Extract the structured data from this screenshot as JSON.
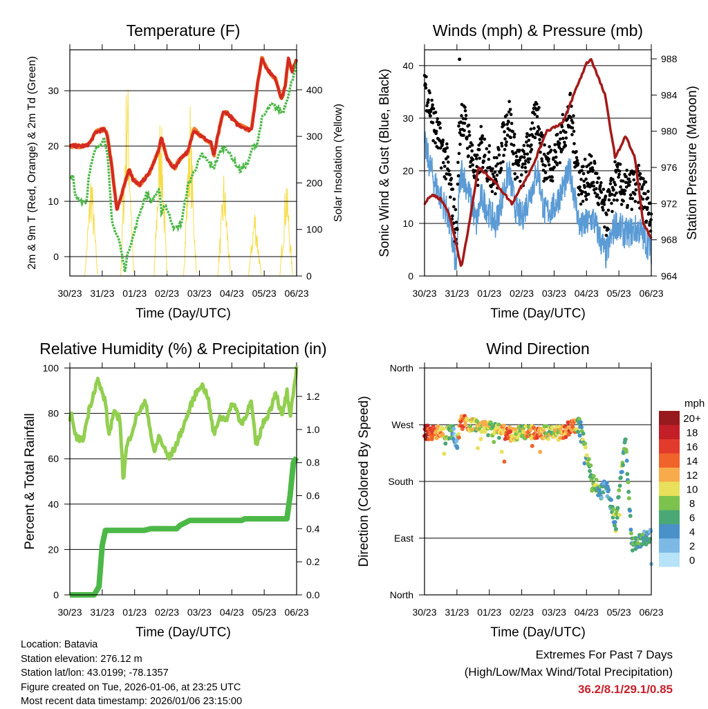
{
  "chart_data": [
    {
      "type": "line",
      "title": "Temperature (F)",
      "xlabel": "Time (Day/UTC)",
      "ylabel": "2m & 9m T (Red, Orange) & 2m Td (Green)",
      "y2label": "Solar Insolation (Yellow)",
      "xticks": [
        "30/23",
        "31/23",
        "01/23",
        "02/23",
        "03/23",
        "04/23",
        "05/23",
        "06/23"
      ],
      "xlim": [
        0,
        7
      ],
      "ylim": [
        -3.5,
        37.4
      ],
      "yticks": [
        0,
        10,
        20,
        30
      ],
      "y2lim": [
        0,
        486
      ],
      "y2ticks": [
        0,
        100,
        200,
        300,
        400
      ],
      "series": [
        {
          "name": "2m/9m T",
          "color": "#d42a22",
          "x": [
            0,
            0.52,
            0.66,
            0.8,
            1.05,
            1.16,
            1.3,
            1.45,
            1.59,
            1.84,
            1.94,
            2.16,
            2.44,
            2.73,
            2.83,
            3.01,
            3.23,
            3.44,
            3.65,
            3.83,
            4.01,
            4.37,
            4.44,
            4.54,
            4.72,
            4.86,
            5.15,
            5.51,
            5.61,
            5.79,
            5.93,
            6.08,
            6.36,
            6.54,
            6.65,
            6.75,
            6.86,
            7.0
          ],
          "y": [
            20,
            20,
            21,
            22.5,
            23,
            22,
            16,
            8.5,
            11,
            16,
            14,
            13,
            15,
            19,
            21.5,
            17.5,
            16,
            18,
            19,
            23,
            22,
            20.5,
            18,
            21,
            26,
            26,
            24,
            23,
            23,
            31,
            36,
            34,
            32,
            28.5,
            31,
            36,
            33.5,
            35.5
          ]
        },
        {
          "name": "2m Td",
          "color": "#4cb848",
          "x": [
            0,
            0.09,
            0.16,
            0.38,
            0.52,
            0.59,
            0.77,
            1.05,
            1.16,
            1.3,
            1.52,
            1.7,
            1.8,
            1.98,
            2.16,
            2.37,
            2.51,
            2.76,
            2.83,
            2.94,
            3.23,
            3.44,
            3.65,
            4.08,
            4.44,
            4.65,
            4.79,
            4.94,
            5.26,
            5.51,
            5.65,
            5.79,
            5.93,
            6.22,
            6.36,
            6.57,
            6.78,
            7.0
          ],
          "y": [
            14,
            15,
            11,
            10,
            10,
            15,
            19,
            21.5,
            19,
            6,
            3,
            -2.5,
            1,
            4,
            8,
            11.5,
            10,
            12,
            8,
            9.5,
            5,
            6,
            13,
            18.5,
            16,
            19,
            20,
            18.5,
            15.5,
            17,
            20,
            20.5,
            25,
            27.5,
            27,
            26,
            30,
            35
          ]
        },
        {
          "name": "Solar Insolation",
          "color": "#f7dc4a",
          "axis": "right",
          "peak_day": [
            0.66,
            1.77,
            2.8,
            3.71,
            4.76,
            5.71,
            6.68
          ],
          "peak_value": [
            250,
            486,
            400,
            390,
            240,
            160,
            235
          ]
        }
      ]
    },
    {
      "type": "scatter",
      "title": "Winds (mph) & Pressure (mb)",
      "xlabel": "Time (Day/UTC)",
      "ylabel": "Sonic Wind & Gust (Blue, Black)",
      "y2label": "Station Pressure (Maroon)",
      "xticks": [
        "30/23",
        "31/23",
        "01/23",
        "02/23",
        "03/23",
        "04/23",
        "05/23",
        "06/23"
      ],
      "xlim": [
        0,
        7
      ],
      "ylim": [
        0,
        43
      ],
      "yticks": [
        0,
        10,
        20,
        30,
        40
      ],
      "y2lim": [
        964,
        989
      ],
      "y2ticks": [
        964,
        968,
        972,
        976,
        980,
        984,
        988
      ],
      "series": [
        {
          "name": "Wind",
          "color": "#5b9bd5",
          "x": [
            0,
            0.3,
            0.7,
            0.95,
            1.0,
            1.05,
            1.15,
            1.4,
            1.6,
            1.75,
            2.0,
            2.2,
            2.6,
            2.8,
            3.0,
            3.5,
            3.7,
            4.0,
            4.5,
            4.8,
            5.2,
            5.6,
            5.9,
            6.2,
            6.6,
            7.0
          ],
          "y": [
            25,
            18,
            12,
            3,
            1,
            15,
            20,
            15,
            10,
            15,
            12,
            10,
            20,
            13,
            11,
            20,
            12,
            13,
            20,
            9,
            11,
            4,
            10,
            8,
            9,
            5
          ]
        },
        {
          "name": "Gust",
          "color": "#000000",
          "max": 41.2
        },
        {
          "name": "Pressure",
          "color": "#a31a1a",
          "axis": "right",
          "x": [
            0,
            0.23,
            0.5,
            0.75,
            0.95,
            1.13,
            1.3,
            1.66,
            2.0,
            2.26,
            2.7,
            3.0,
            3.33,
            3.76,
            4.29,
            4.6,
            5.0,
            5.14,
            5.57,
            5.89,
            6.2,
            6.5,
            6.74,
            7.0
          ],
          "y": [
            972,
            973,
            972.5,
            971,
            968,
            965,
            968,
            976,
            975,
            974,
            972,
            974,
            976,
            980,
            981,
            984,
            987.5,
            988,
            984,
            977,
            979.5,
            977,
            970,
            968
          ]
        }
      ]
    },
    {
      "type": "line",
      "title": "Relative Humidity (%) & Precipitation (in)",
      "xlabel": "Time (Day/UTC)",
      "ylabel": "Percent & Total Rainfall",
      "xticks": [
        "30/23",
        "31/23",
        "01/23",
        "02/23",
        "03/23",
        "04/23",
        "05/23",
        "06/23"
      ],
      "xlim": [
        0,
        7
      ],
      "ylim": [
        0,
        100
      ],
      "yticks": [
        0,
        20,
        40,
        60,
        80,
        100
      ],
      "y2lim": [
        0,
        1.372
      ],
      "y2ticks": [
        "0.0",
        "0.2",
        "0.4",
        "0.6",
        "0.8",
        "1.0",
        "1.2"
      ],
      "series": [
        {
          "name": "Relative Humidity",
          "color": "#92cf50",
          "x": [
            0,
            0.05,
            0.15,
            0.4,
            0.6,
            0.85,
            1.1,
            1.2,
            1.35,
            1.55,
            1.65,
            1.75,
            2.1,
            2.35,
            2.6,
            2.75,
            3.05,
            3.25,
            3.55,
            3.8,
            4.05,
            4.25,
            4.45,
            4.6,
            4.85,
            5.05,
            5.3,
            5.6,
            5.75,
            5.95,
            6.2,
            6.35,
            6.55,
            6.7,
            6.8,
            6.95,
            7.0
          ],
          "y": [
            75,
            82,
            70,
            68,
            82,
            95,
            85,
            70,
            80,
            78,
            50,
            65,
            80,
            85,
            62,
            70,
            60,
            65,
            76,
            86,
            93,
            88,
            70,
            78,
            78,
            85,
            75,
            85,
            65,
            75,
            82,
            90,
            78,
            90,
            77,
            95,
            100
          ]
        },
        {
          "name": "Total Precipitation",
          "color": "#4cb848",
          "axis": "right",
          "x": [
            0,
            0.75,
            0.9,
            1.0,
            1.1,
            2.3,
            2.5,
            3.3,
            3.4,
            3.7,
            5.3,
            5.4,
            6.7,
            6.8,
            6.9,
            7.0
          ],
          "y": [
            0,
            0,
            0.05,
            0.3,
            0.39,
            0.39,
            0.4,
            0.4,
            0.42,
            0.45,
            0.45,
            0.46,
            0.46,
            0.6,
            0.8,
            0.83
          ]
        }
      ]
    },
    {
      "type": "scatter",
      "title": "Wind Direction",
      "xlabel": "Time (Day/UTC)",
      "ylabel": "Direction (Colored By Speed)",
      "xticks": [
        "30/23",
        "31/23",
        "01/23",
        "02/23",
        "03/23",
        "04/23",
        "05/23",
        "06/23"
      ],
      "xlim": [
        0,
        7
      ],
      "ylim": [
        0,
        360
      ],
      "yticks": [
        "North",
        "East",
        "South",
        "West",
        "North"
      ],
      "direction_x": [
        0,
        0.9,
        1.0,
        1.1,
        2.3,
        2.6,
        3.2,
        4.2,
        4.8,
        5.1,
        5.4,
        5.6,
        5.9,
        6.2,
        6.4,
        6.6,
        7.0
      ],
      "direction_y": [
        258,
        258,
        240,
        275,
        260,
        255,
        258,
        258,
        270,
        200,
        160,
        175,
        110,
        250,
        80,
        85,
        95
      ],
      "legend": {
        "title": "mph",
        "labels": [
          "20+",
          "18",
          "16",
          "14",
          "12",
          "10",
          "8",
          "6",
          "4",
          "2",
          "0"
        ],
        "colors": [
          "#981a1e",
          "#c31f28",
          "#e23b2c",
          "#f0632b",
          "#f8ab4b",
          "#e8e05a",
          "#7cc24d",
          "#4aa874",
          "#4a90c9",
          "#7db9e5",
          "#b6e3f8"
        ]
      }
    }
  ],
  "footer": {
    "location": "Location: Batavia",
    "elevation": "Station elevation: 276.12 m",
    "latlon": "Station lat/lon: 43.0199; -78.1357",
    "created": "Figure created on Tue, 2026-01-06, at 23:25 UTC",
    "timestamp": "Most recent data timestamp: 2026/01/06 23:15:00"
  },
  "extremes": {
    "title": "Extremes For Past 7 Days",
    "subtitle": "(High/Low/Max Wind/Total Precipitation)",
    "values": "36.2/8.1/29.1/0.85"
  }
}
